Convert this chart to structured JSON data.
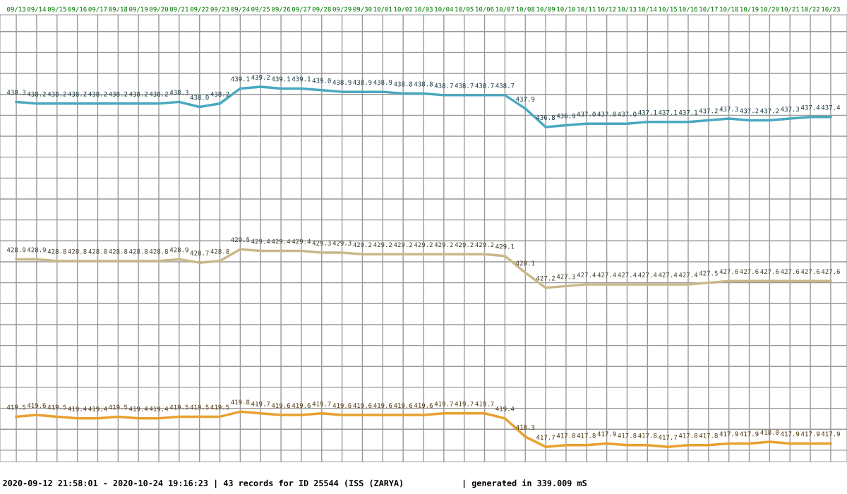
{
  "chart_data": {
    "type": "line",
    "categories": [
      "09/13",
      "09/14",
      "09/15",
      "09/16",
      "09/17",
      "09/18",
      "09/19",
      "09/20",
      "09/21",
      "09/22",
      "09/23",
      "09/24",
      "09/25",
      "09/26",
      "09/27",
      "09/28",
      "09/29",
      "09/30",
      "10/01",
      "10/02",
      "10/03",
      "10/04",
      "10/05",
      "10/06",
      "10/07",
      "10/08",
      "10/09",
      "10/10",
      "10/11",
      "10/12",
      "10/13",
      "10/14",
      "10/15",
      "10/16",
      "10/17",
      "10/18",
      "10/19",
      "10/20",
      "10/21",
      "10/22",
      "10/23"
    ],
    "series": [
      {
        "color": "#4aa8c0",
        "values": [
          438.3,
          438.2,
          438.2,
          438.2,
          438.2,
          438.2,
          438.2,
          438.2,
          438.3,
          438.0,
          438.2,
          439.1,
          439.2,
          439.1,
          439.1,
          439.0,
          438.9,
          438.9,
          438.9,
          438.8,
          438.8,
          438.7,
          438.7,
          438.7,
          438.7,
          437.9,
          436.8,
          436.9,
          437.0,
          437.0,
          437.0,
          437.1,
          437.1,
          437.1,
          437.2,
          437.3,
          437.2,
          437.2,
          437.3,
          437.4,
          437.4
        ],
        "value_labels": [
          "438.3",
          "438.2",
          "438.2",
          "438.2",
          "438.2",
          "438.2",
          "438.2",
          "438.2",
          "438.3",
          "438.0",
          "438.2",
          "439.1",
          "439.2",
          "439.1",
          "439.1",
          "439.0",
          "438.9",
          "438.9",
          "438.9",
          "438.8",
          "438.8",
          "438.7",
          "438.7",
          "438.7",
          "438.7",
          "437.9",
          "436.8",
          "436.9",
          "437.0",
          "437.0",
          "437.0",
          "437.1",
          "437.1",
          "437.1",
          "437.2",
          "437.3",
          "437.2",
          "437.2",
          "437.3",
          "437.4",
          "437.4"
        ]
      },
      {
        "color": "#c8b88a",
        "values": [
          428.9,
          428.9,
          428.8,
          428.8,
          428.8,
          428.8,
          428.8,
          428.8,
          428.9,
          428.7,
          428.8,
          429.5,
          429.4,
          429.4,
          429.4,
          429.3,
          429.3,
          429.2,
          429.2,
          429.2,
          429.2,
          429.2,
          429.2,
          429.2,
          429.1,
          428.1,
          427.2,
          427.3,
          427.4,
          427.4,
          427.4,
          427.4,
          427.4,
          427.4,
          427.5,
          427.6,
          427.6,
          427.6,
          427.6,
          427.6,
          427.6
        ],
        "value_labels": [
          "428.9",
          "428.9",
          "428.8",
          "428.8",
          "428.8",
          "428.8",
          "428.8",
          "428.8",
          "428.9",
          "428.7",
          "428.8",
          "429.5",
          "429.4",
          "429.4",
          "429.4",
          "429.3",
          "429.3",
          "429.2",
          "429.2",
          "429.2",
          "429.2",
          "429.2",
          "429.2",
          "429.2",
          "429.1",
          "428.1",
          "427.2",
          "427.3",
          "427.4",
          "427.4",
          "427.4",
          "427.4",
          "427.4",
          "427.4",
          "427.5",
          "427.6",
          "427.6",
          "427.6",
          "427.6",
          "427.6",
          "427.6"
        ]
      },
      {
        "color": "#e8a030",
        "values": [
          419.5,
          419.6,
          419.5,
          419.4,
          419.4,
          419.5,
          419.4,
          419.4,
          419.5,
          419.5,
          419.5,
          419.8,
          419.7,
          419.6,
          419.6,
          419.7,
          419.6,
          419.6,
          419.6,
          419.6,
          419.6,
          419.7,
          419.7,
          419.7,
          419.4,
          418.3,
          417.7,
          417.8,
          417.8,
          417.9,
          417.8,
          417.8,
          417.7,
          417.8,
          417.8,
          417.9,
          417.9,
          418.0,
          417.9,
          417.9,
          417.9
        ],
        "value_labels": [
          "419.5",
          "419.6",
          "419.5",
          "419.4",
          "419.4",
          "419.5",
          "419.4",
          "419.4",
          "419.5",
          "419.5",
          "419.5",
          "419.8",
          "419.7",
          "419.6",
          "419.6",
          "419.7",
          "419.6",
          "419.6",
          "419.6",
          "419.6",
          "419.6",
          "419.7",
          "419.7",
          "419.7",
          "419.4",
          "418.3",
          "417.7",
          "417.8",
          "417.8",
          "417.9",
          "417.8",
          "417.8",
          "417.7",
          "417.8",
          "417.8",
          "417.9",
          "417.9",
          "418.0",
          "417.9",
          "417.9",
          "417.9"
        ]
      }
    ],
    "ylim": [
      416.8,
      443.5
    ],
    "yticks": [
      {
        "value": 417.5,
        "label": null
      },
      {
        "value": 418.75,
        "label": null
      },
      {
        "value": 420.0,
        "label": null
      },
      {
        "value": 421.25,
        "label": null
      },
      {
        "value": 422.5,
        "label": null
      },
      {
        "value": 423.75,
        "label": null
      },
      {
        "value": 425.0,
        "label": null
      },
      {
        "value": 426.25,
        "label": null
      },
      {
        "value": 427.5,
        "label": null
      },
      {
        "value": 428.75,
        "label": null
      },
      {
        "value": 430.0,
        "label": null
      },
      {
        "value": 431.25,
        "label": null
      },
      {
        "value": 432.5,
        "label": null
      },
      {
        "value": 433.75,
        "label": null
      },
      {
        "value": 435.0,
        "label": null
      },
      {
        "value": 436.25,
        "label": null
      },
      {
        "value": 437.5,
        "label": null
      },
      {
        "value": 438.75,
        "label": null
      },
      {
        "value": 440.0,
        "label": null
      },
      {
        "value": 441.25,
        "label": null
      },
      {
        "value": 442.5,
        "label": null
      }
    ],
    "tick_labels": "x",
    "grid": true,
    "marker": "none",
    "line_style": "solid",
    "annotations": [
      "2020-09-12 21:58:01 - 2020-10-24 19:16:23 | 43 records for ID 25544 (ISS (ZARYA)",
      "| generated in 339.009 mS"
    ]
  }
}
